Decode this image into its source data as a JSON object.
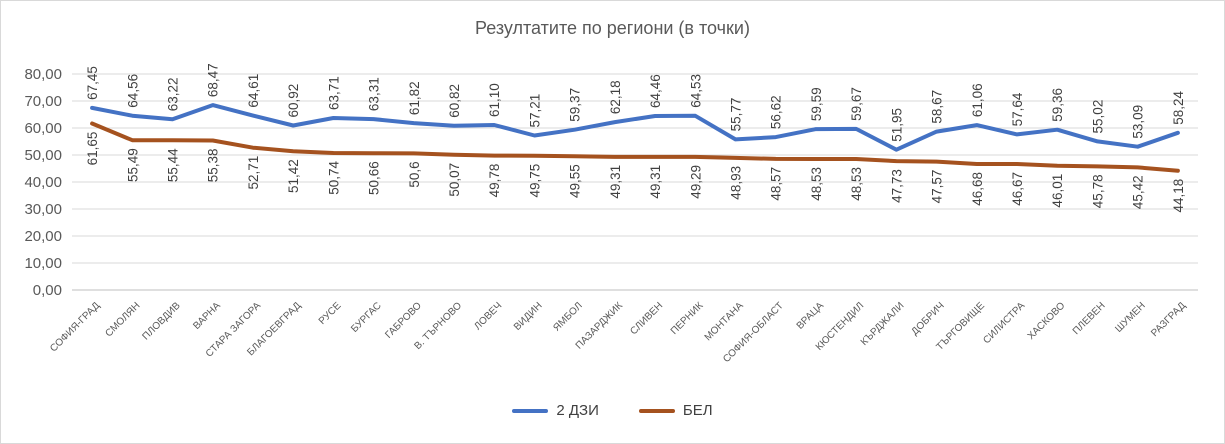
{
  "chart_data": {
    "type": "line",
    "title": "Резултатите по региони (в точки)",
    "categories": [
      "СОФИЯ-ГРАД",
      "СМОЛЯН",
      "ПЛОВДИВ",
      "ВАРНА",
      "СТАРА ЗАГОРА",
      "БЛАГОЕВГРАД",
      "РУСЕ",
      "БУРГАС",
      "ГАБРОВО",
      "В. ТЪРНОВО",
      "ЛОВЕЧ",
      "ВИДИН",
      "ЯМБОЛ",
      "ПАЗАРДЖИК",
      "СЛИВЕН",
      "ПЕРНИК",
      "МОНТАНА",
      "СОФИЯ-ОБЛАСТ",
      "ВРАЦА",
      "КЮСТЕНДИЛ",
      "КЪРДЖАЛИ",
      "ДОБРИЧ",
      "ТЪРГОВИЩЕ",
      "СИЛИСТРА",
      "ХАСКОВО",
      "ПЛЕВЕН",
      "ШУМЕН",
      "РАЗГРАД"
    ],
    "series": [
      {
        "name": "2 ДЗИ",
        "color": "#4472c4",
        "values": [
          67.45,
          64.56,
          63.22,
          68.47,
          64.61,
          60.92,
          63.71,
          63.31,
          61.82,
          60.82,
          61.1,
          57.21,
          59.37,
          62.18,
          64.46,
          64.53,
          55.77,
          56.62,
          59.59,
          59.67,
          51.95,
          58.67,
          61.06,
          57.64,
          59.36,
          55.02,
          53.09,
          58.24
        ],
        "labels": [
          "67,45",
          "64,56",
          "63,22",
          "68,47",
          "64,61",
          "60,92",
          "63,71",
          "63,31",
          "61,82",
          "60,82",
          "61,10",
          "57,21",
          "59,37",
          "62,18",
          "64,46",
          "64,53",
          "55,77",
          "56,62",
          "59,59",
          "59,67",
          "51,95",
          "58,67",
          "61,06",
          "57,64",
          "59,36",
          "55,02",
          "53,09",
          "58,24"
        ]
      },
      {
        "name": "БЕЛ",
        "color": "#a5521f",
        "values": [
          61.65,
          55.49,
          55.44,
          55.38,
          52.71,
          51.42,
          50.74,
          50.66,
          50.6,
          50.07,
          49.78,
          49.75,
          49.55,
          49.31,
          49.31,
          49.29,
          48.93,
          48.57,
          48.53,
          48.53,
          47.73,
          47.57,
          46.68,
          46.67,
          46.01,
          45.78,
          45.42,
          44.18
        ],
        "labels": [
          "61,65",
          "55,49",
          "55,44",
          "55,38",
          "52,71",
          "51,42",
          "50,74",
          "50,66",
          "50,6",
          "50,07",
          "49,78",
          "49,75",
          "49,55",
          "49,31",
          "49,31",
          "49,29",
          "48,93",
          "48,57",
          "48,53",
          "48,53",
          "47,73",
          "47,57",
          "46,68",
          "46,67",
          "46,01",
          "45,78",
          "45,42",
          "44,18"
        ]
      }
    ],
    "ylim": [
      0,
      80
    ],
    "yticks": [
      "0,00",
      "10,00",
      "20,00",
      "30,00",
      "40,00",
      "50,00",
      "60,00",
      "70,00",
      "80,00"
    ],
    "grid": true,
    "legend_position": "bottom"
  }
}
